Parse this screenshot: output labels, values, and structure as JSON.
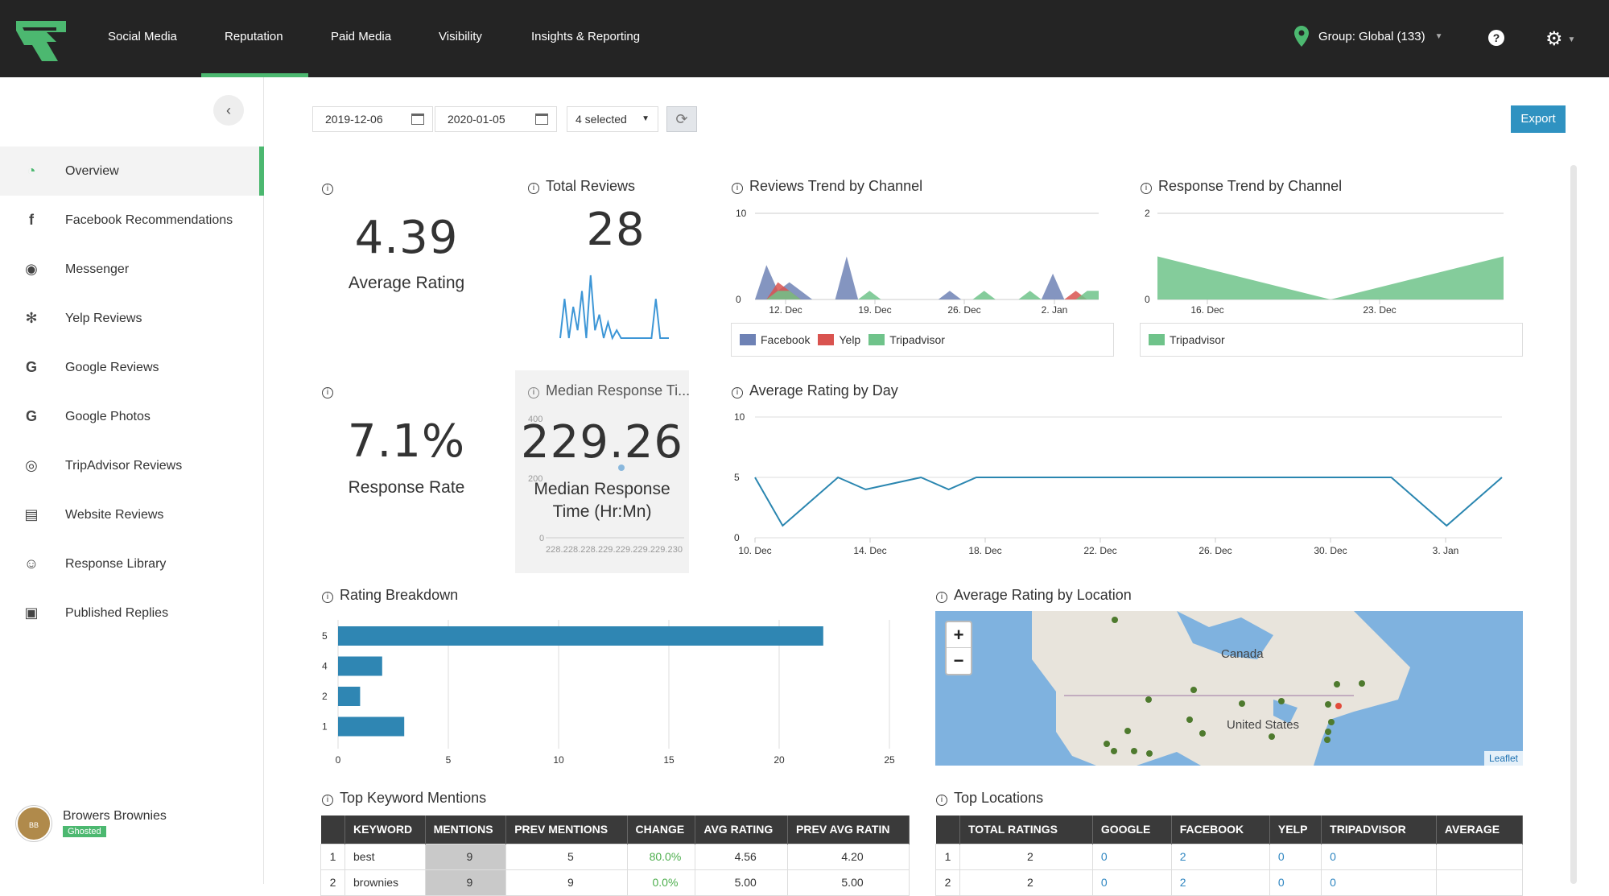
{
  "nav": {
    "items": [
      "Social Media",
      "Reputation",
      "Paid Media",
      "Visibility",
      "Insights & Reporting"
    ],
    "active": "Reputation",
    "group": "Group: Global (133)"
  },
  "sidebar": {
    "items": [
      {
        "label": "Overview",
        "icon": "overview-icon"
      },
      {
        "label": "Facebook Recommendations",
        "icon": "facebook-icon"
      },
      {
        "label": "Messenger",
        "icon": "messenger-icon"
      },
      {
        "label": "Yelp Reviews",
        "icon": "yelp-icon"
      },
      {
        "label": "Google Reviews",
        "icon": "google-icon"
      },
      {
        "label": "Google Photos",
        "icon": "google-icon"
      },
      {
        "label": "TripAdvisor Reviews",
        "icon": "tripadvisor-icon"
      },
      {
        "label": "Website Reviews",
        "icon": "website-icon"
      },
      {
        "label": "Response Library",
        "icon": "chat-icon"
      },
      {
        "label": "Published Replies",
        "icon": "published-icon"
      }
    ],
    "active": "Overview",
    "account": {
      "name": "Browers Brownies",
      "status": "Ghosted"
    }
  },
  "filters": {
    "start_date": "2019-12-06",
    "end_date": "2020-01-05",
    "selection": "4 selected",
    "export_label": "Export"
  },
  "kpis": {
    "average_rating": {
      "value": "4.39",
      "label": "Average Rating"
    },
    "total_reviews": {
      "title": "Total Reviews",
      "value": "28"
    },
    "response_rate": {
      "value": "7.1%",
      "label": "Response Rate"
    },
    "median_response": {
      "title": "Median Response Ti...",
      "value": "229.26",
      "label_1": "Median Response",
      "label_2": "Time (Hr:Mn)",
      "y_ticks": [
        "400",
        "200",
        "0"
      ],
      "x_ticks_text": "228.228.228.229.229.229.229.230"
    }
  },
  "titles": {
    "reviews_trend": "Reviews Trend by Channel",
    "response_trend": "Response Trend by Channel",
    "avg_rating_day": "Average Rating by Day",
    "rating_breakdown": "Rating Breakdown",
    "avg_rating_location": "Average Rating by Location",
    "top_keywords": "Top Keyword Mentions",
    "top_locations": "Top Locations"
  },
  "map": {
    "labels": [
      "Canada",
      "United States"
    ],
    "attribution": "Leaflet"
  },
  "colors": {
    "facebook": "#6e82b5",
    "yelp": "#d9534f",
    "tripadvisor": "#6fc38a",
    "line": "#2a86b0",
    "bar": "#2f86b3",
    "accent": "#4cb870"
  },
  "chart_data": [
    {
      "type": "area",
      "name": "Reviews Trend by Channel",
      "x_ticks": [
        "12. Dec",
        "19. Dec",
        "26. Dec",
        "2. Jan"
      ],
      "y_ticks": [
        "10",
        "0"
      ],
      "ylim": [
        0,
        10
      ],
      "series": [
        {
          "name": "Facebook",
          "values": [
            0,
            4,
            1,
            2,
            1,
            0,
            0,
            0,
            5,
            0,
            0,
            0,
            0,
            0,
            0,
            0,
            0,
            1,
            0,
            0,
            0,
            0,
            0,
            0,
            0,
            0,
            3,
            0,
            0,
            0,
            0
          ]
        },
        {
          "name": "Yelp",
          "values": [
            0,
            0,
            2,
            1,
            0,
            0,
            0,
            0,
            0,
            0,
            0,
            0,
            0,
            0,
            0,
            0,
            0,
            0,
            0,
            0,
            0,
            0,
            0,
            0,
            0,
            0,
            0,
            0,
            1,
            0,
            0
          ]
        },
        {
          "name": "Tripadvisor",
          "values": [
            0,
            0,
            1,
            1,
            0,
            0,
            0,
            0,
            0,
            0,
            1,
            0,
            0,
            0,
            0,
            0,
            0,
            0,
            0,
            0,
            1,
            0,
            0,
            0,
            1,
            0,
            0,
            0,
            0,
            1,
            1
          ]
        }
      ]
    },
    {
      "type": "area",
      "name": "Response Trend by Channel",
      "x_ticks": [
        "16. Dec",
        "23. Dec"
      ],
      "y_ticks": [
        "2",
        "0"
      ],
      "ylim": [
        0,
        2
      ],
      "series": [
        {
          "name": "Tripadvisor",
          "values": [
            1,
            0,
            1
          ]
        }
      ]
    },
    {
      "type": "line",
      "name": "Total Reviews sparkline",
      "values": [
        0,
        5,
        0,
        4,
        1,
        6,
        0,
        8,
        1,
        3,
        0,
        2,
        0,
        1,
        0,
        0,
        0,
        0,
        0,
        0,
        0,
        0,
        5,
        0,
        0,
        0
      ]
    },
    {
      "type": "line",
      "name": "Average Rating by Day",
      "x_ticks": [
        "10. Dec",
        "14. Dec",
        "18. Dec",
        "22. Dec",
        "26. Dec",
        "30. Dec",
        "3. Jan"
      ],
      "y_ticks": [
        "10",
        "5",
        "0"
      ],
      "ylim": [
        0,
        10
      ],
      "values": [
        5,
        1,
        3,
        5,
        4,
        4.5,
        5,
        4,
        5,
        5,
        5,
        5,
        5,
        5,
        5,
        5,
        5,
        5,
        5,
        5,
        5,
        5,
        5,
        5,
        3,
        1,
        3,
        5
      ]
    },
    {
      "type": "bar",
      "name": "Rating Breakdown",
      "categories": [
        "5",
        "4",
        "2",
        "1"
      ],
      "values": [
        22,
        2,
        1,
        3
      ],
      "x_ticks": [
        "0",
        "5",
        "10",
        "15",
        "20",
        "25"
      ],
      "xlim": [
        0,
        25
      ]
    }
  ],
  "keywords_table": {
    "headers": [
      "",
      "KEYWORD",
      "MENTIONS",
      "PREV MENTIONS",
      "CHANGE",
      "AVG RATING",
      "PREV AVG RATIN"
    ],
    "rows": [
      [
        "1",
        "best",
        "9",
        "5",
        "80.0%",
        "4.56",
        "4.20"
      ],
      [
        "2",
        "brownies",
        "9",
        "9",
        "0.0%",
        "5.00",
        "5.00"
      ]
    ]
  },
  "locations_table": {
    "headers": [
      "",
      "TOTAL RATINGS",
      "GOOGLE",
      "FACEBOOK",
      "YELP",
      "TRIPADVISOR",
      "AVERAGE"
    ],
    "rows": [
      [
        "1",
        "2",
        "0",
        "2",
        "0",
        "0",
        ""
      ],
      [
        "2",
        "2",
        "0",
        "2",
        "0",
        "0",
        ""
      ]
    ]
  }
}
